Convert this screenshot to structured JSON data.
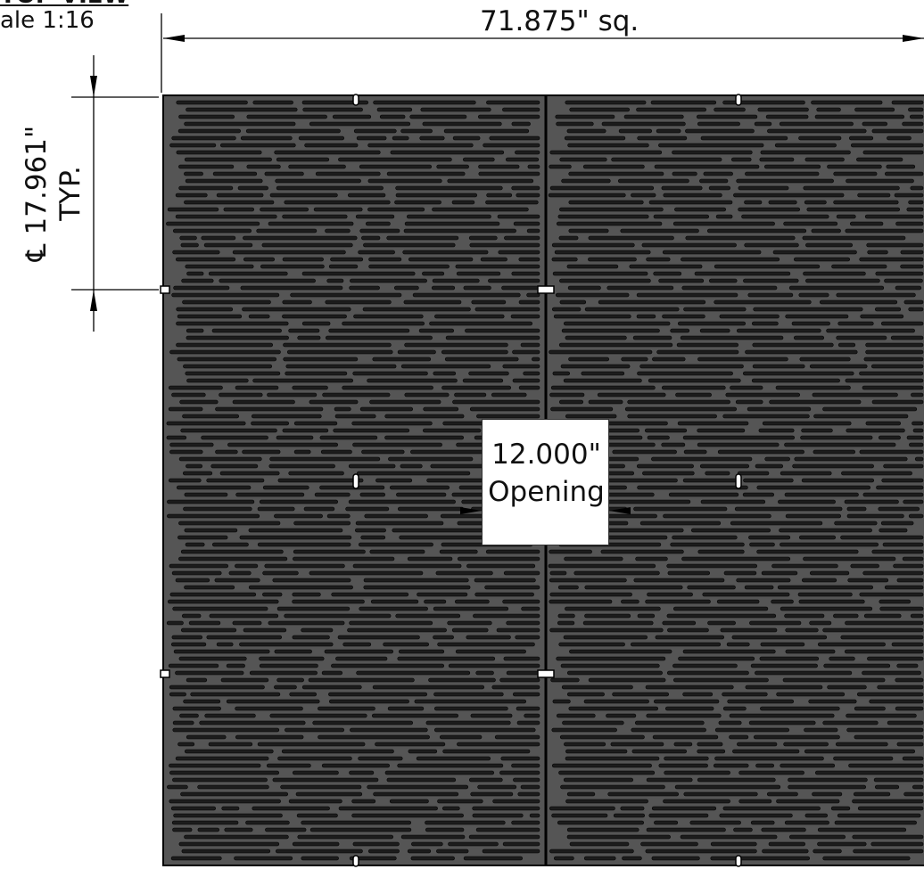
{
  "drawing": {
    "view_title": "TOP VIEW",
    "scale": "ale 1:16",
    "overall_width": "71.875\" sq.",
    "centerline_spacing": "17.961\"",
    "centerline_spacing_note": "TYP.",
    "centerline_symbol": "℄",
    "opening_dimension": "12.000\"",
    "opening_label": "Opening"
  },
  "colors": {
    "grate_fill": "#555555",
    "slot_fill": "#1c1c1c",
    "outline": "#000000",
    "dimension_line": "#000000"
  }
}
